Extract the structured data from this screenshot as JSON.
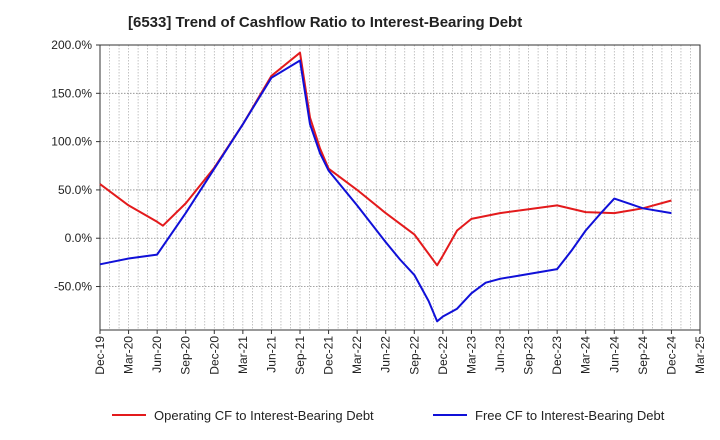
{
  "chart_data": {
    "type": "line",
    "title": "[6533]  Trend of Cashflow Ratio to Interest-Bearing Debt",
    "xlabel": "",
    "ylabel": "",
    "ylim": [
      -95,
      200
    ],
    "yticks": [
      200,
      150,
      100,
      50,
      0,
      -50
    ],
    "ytick_labels": [
      "200.0%",
      "150.0%",
      "100.0%",
      "50.0%",
      "0.0%",
      "-50.0%"
    ],
    "xticks": [
      "Dec-19",
      "Mar-20",
      "Jun-20",
      "Sep-20",
      "Dec-20",
      "Mar-21",
      "Jun-21",
      "Sep-21",
      "Dec-21",
      "Mar-22",
      "Jun-22",
      "Sep-22",
      "Dec-22",
      "Mar-23",
      "Jun-23",
      "Sep-23",
      "Dec-23",
      "Mar-24",
      "Jun-24",
      "Sep-24",
      "Dec-24",
      "Mar-25"
    ],
    "grid": true,
    "legend_position": "bottom",
    "series": [
      {
        "name": "Operating CF to Interest-Bearing Debt",
        "color": "#e31a1c",
        "points": [
          [
            0,
            56
          ],
          [
            1,
            34
          ],
          [
            2,
            17
          ],
          [
            2.2,
            13
          ],
          [
            3,
            36
          ],
          [
            4,
            73
          ],
          [
            5,
            118
          ],
          [
            6,
            168
          ],
          [
            7,
            192
          ],
          [
            7.35,
            125
          ],
          [
            7.7,
            93
          ],
          [
            8,
            72
          ],
          [
            9,
            50
          ],
          [
            10,
            26
          ],
          [
            11,
            4
          ],
          [
            11.8,
            -28
          ],
          [
            12,
            -18
          ],
          [
            12.5,
            8
          ],
          [
            13,
            20
          ],
          [
            14,
            26
          ],
          [
            15,
            30
          ],
          [
            16,
            34
          ],
          [
            17,
            27
          ],
          [
            18,
            26
          ],
          [
            19,
            31
          ],
          [
            20,
            39
          ]
        ]
      },
      {
        "name": "Free CF to Interest-Bearing Debt",
        "color": "#1010d8",
        "points": [
          [
            0,
            -27
          ],
          [
            1,
            -21
          ],
          [
            2,
            -17
          ],
          [
            3,
            26
          ],
          [
            4,
            72
          ],
          [
            5,
            118
          ],
          [
            6,
            166
          ],
          [
            7,
            184
          ],
          [
            7.35,
            118
          ],
          [
            7.7,
            88
          ],
          [
            8,
            70
          ],
          [
            9,
            34
          ],
          [
            10,
            -4
          ],
          [
            10.5,
            -22
          ],
          [
            11,
            -38
          ],
          [
            11.5,
            -65
          ],
          [
            11.8,
            -86
          ],
          [
            12,
            -81
          ],
          [
            12.5,
            -73
          ],
          [
            13,
            -57
          ],
          [
            13.5,
            -46
          ],
          [
            14,
            -42
          ],
          [
            15,
            -37
          ],
          [
            16,
            -32
          ],
          [
            16.5,
            -13
          ],
          [
            17,
            8
          ],
          [
            17.5,
            25
          ],
          [
            18,
            41
          ],
          [
            19,
            31
          ],
          [
            20,
            26
          ]
        ]
      }
    ]
  }
}
